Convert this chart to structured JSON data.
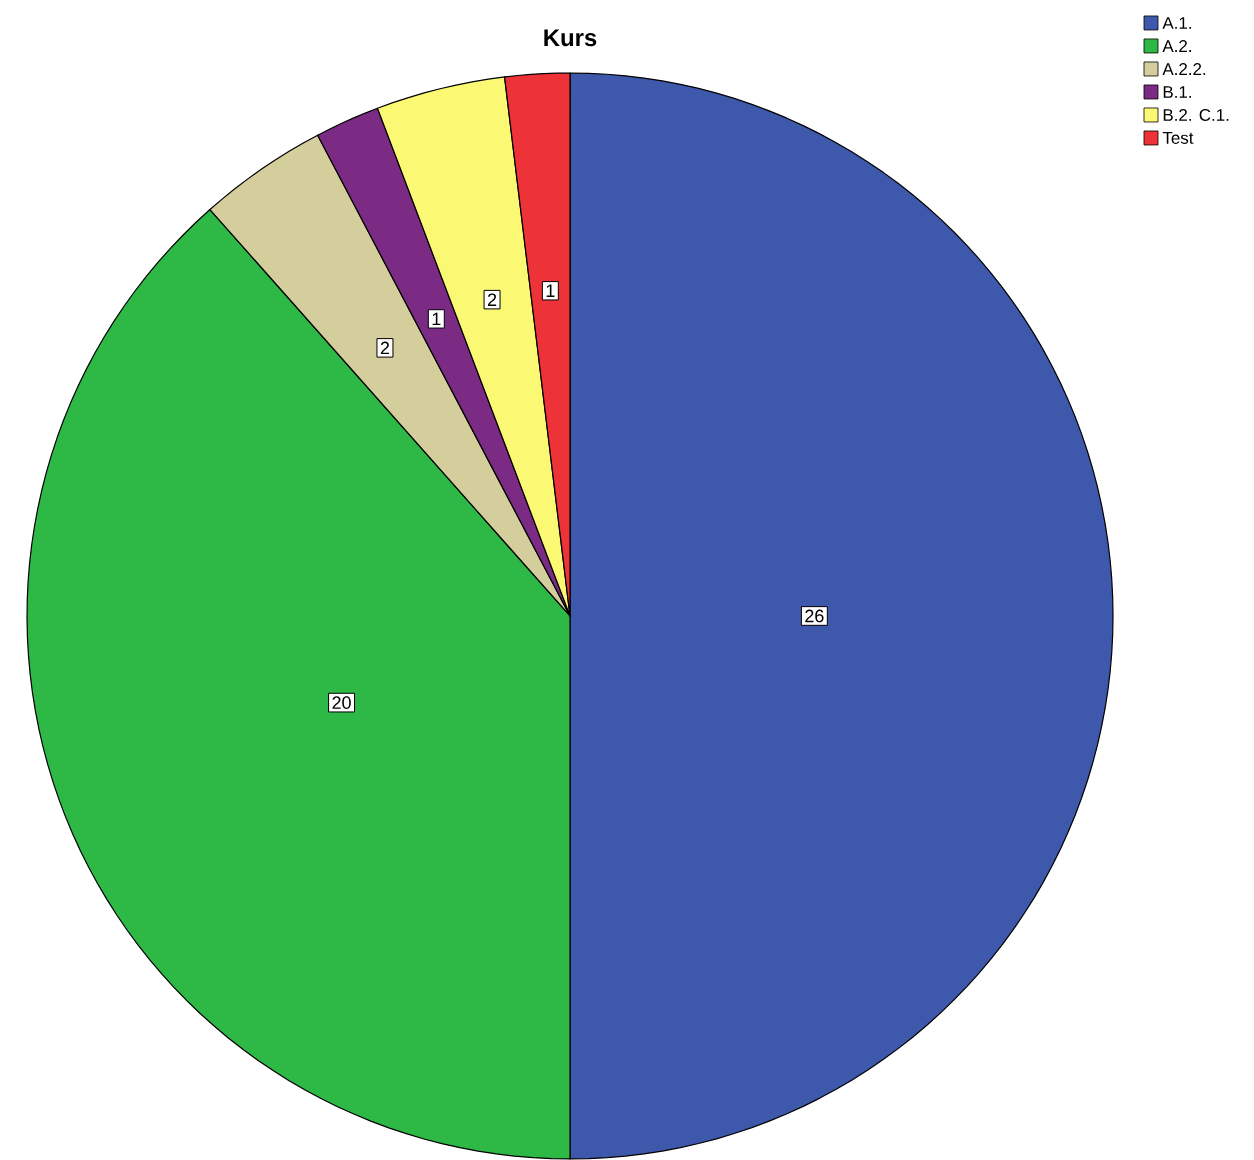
{
  "chart_data": {
    "type": "pie",
    "title": "Kurs",
    "categories": [
      "A.1.",
      "A.2.",
      "A.2.2.",
      "B.1.",
      "B.2. C.1.",
      "Test"
    ],
    "values": [
      26,
      20,
      2,
      1,
      2,
      1
    ],
    "colors": [
      "#3e58ac",
      "#2eb846",
      "#d4cd9c",
      "#7b2b84",
      "#fbf873",
      "#ee3338"
    ],
    "data_labels": true,
    "legend": "top right"
  }
}
